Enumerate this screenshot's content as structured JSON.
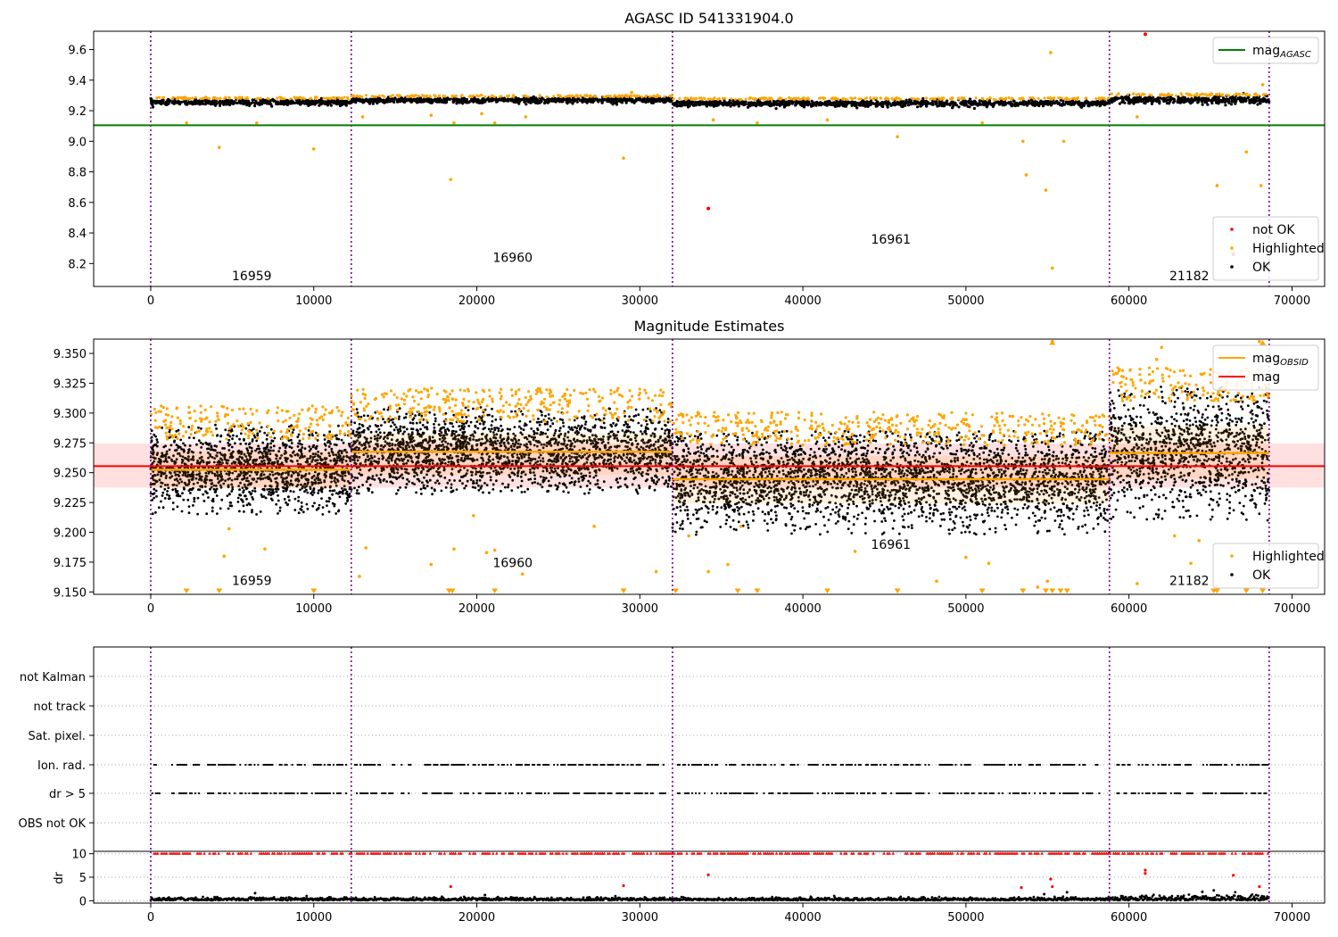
{
  "chart_data": [
    {
      "id": "top",
      "type": "scatter",
      "title": "AGASC ID 541331904.0",
      "xlabel": "",
      "ylabel": "",
      "xlim": [
        -3500,
        72000
      ],
      "ylim": [
        8.05,
        9.72
      ],
      "xticks": [
        0,
        10000,
        20000,
        30000,
        40000,
        50000,
        60000,
        70000
      ],
      "yticks": [
        8.2,
        8.4,
        8.6,
        8.8,
        9.0,
        9.2,
        9.4,
        9.6
      ],
      "ytick_labels": [
        "8.2",
        "8.4",
        "8.6",
        "8.8",
        "9.0",
        "9.2",
        "9.4",
        "9.6"
      ],
      "obs_boundaries": [
        0,
        12300,
        32000,
        58800,
        68600
      ],
      "obsids": [
        {
          "label": "16959",
          "x": 6200,
          "y": 8.09
        },
        {
          "label": "16960",
          "x": 22200,
          "y": 8.21
        },
        {
          "label": "16961",
          "x": 45400,
          "y": 8.33
        },
        {
          "label": "21182",
          "x": 63700,
          "y": 8.09
        }
      ],
      "mag_agasc": {
        "name": "mag_AGASC",
        "value": 9.105,
        "x_range": [
          -3500,
          72000
        ],
        "color": "#008000"
      },
      "ok_band": [
        {
          "x0": 0,
          "x1": 12300,
          "center": 9.255,
          "spread": 0.02
        },
        {
          "x0": 12300,
          "x1": 32000,
          "center": 9.268,
          "spread": 0.02
        },
        {
          "x0": 32000,
          "x1": 58800,
          "center": 9.248,
          "spread": 0.022
        },
        {
          "x0": 58800,
          "x1": 68600,
          "center": 9.27,
          "spread": 0.025
        }
      ],
      "highlighted_points": [
        [
          4200,
          8.96
        ],
        [
          10000,
          8.95
        ],
        [
          2200,
          9.12
        ],
        [
          6500,
          9.12
        ],
        [
          13000,
          9.16
        ],
        [
          17200,
          9.17
        ],
        [
          18400,
          8.75
        ],
        [
          18600,
          9.12
        ],
        [
          20300,
          9.18
        ],
        [
          21100,
          9.12
        ],
        [
          23000,
          9.16
        ],
        [
          29000,
          8.89
        ],
        [
          34500,
          9.14
        ],
        [
          37200,
          9.12
        ],
        [
          45800,
          9.03
        ],
        [
          51000,
          9.12
        ],
        [
          53500,
          9.0
        ],
        [
          53700,
          8.78
        ],
        [
          54900,
          8.68
        ],
        [
          55200,
          9.58
        ],
        [
          55300,
          8.17
        ],
        [
          56000,
          9.0
        ],
        [
          60500,
          9.16
        ],
        [
          65400,
          8.71
        ],
        [
          67200,
          8.93
        ],
        [
          68100,
          8.71
        ],
        [
          68200,
          9.37
        ],
        [
          41500,
          9.14
        ],
        [
          25000,
          9.3
        ],
        [
          29500,
          9.32
        ]
      ],
      "not_ok_points": [
        [
          34200,
          8.56
        ],
        [
          61000,
          9.7
        ],
        [
          66400,
          8.26
        ]
      ],
      "legends": [
        {
          "position": "upper-right",
          "entries": [
            {
              "label": "mag",
              "sub": "AGASC",
              "kind": "line",
              "color": "#008000"
            }
          ]
        },
        {
          "position": "lower-right",
          "entries": [
            {
              "label": "not OK",
              "kind": "dot",
              "color": "#ff0000"
            },
            {
              "label": "Highlighted",
              "kind": "dot",
              "color": "#ffa500"
            },
            {
              "label": "OK",
              "kind": "dot",
              "color": "#000000"
            }
          ]
        }
      ]
    },
    {
      "id": "middle",
      "type": "scatter",
      "title": "Magnitude Estimates",
      "xlabel": "",
      "ylabel": "",
      "xlim": [
        -3500,
        72000
      ],
      "ylim": [
        9.148,
        9.362
      ],
      "xticks": [
        0,
        10000,
        20000,
        30000,
        40000,
        50000,
        60000,
        70000
      ],
      "yticks": [
        9.15,
        9.175,
        9.2,
        9.225,
        9.25,
        9.275,
        9.3,
        9.325,
        9.35
      ],
      "ytick_labels": [
        "9.150",
        "9.175",
        "9.200",
        "9.225",
        "9.250",
        "9.275",
        "9.300",
        "9.325",
        "9.350"
      ],
      "obs_boundaries": [
        0,
        12300,
        32000,
        58800,
        68600
      ],
      "obsids": [
        {
          "label": "16959",
          "x": 6200,
          "y": 9.156
        },
        {
          "label": "16960",
          "x": 22200,
          "y": 9.171
        },
        {
          "label": "16961",
          "x": 45400,
          "y": 9.186
        },
        {
          "label": "21182",
          "x": 63700,
          "y": 9.156
        }
      ],
      "mag": {
        "name": "mag",
        "value": 9.2555,
        "band": [
          9.2375,
          9.2745
        ],
        "x_range": [
          -3500,
          72000
        ],
        "color": "#ff0000"
      },
      "mag_obsid": [
        {
          "x0": 0,
          "x1": 12300,
          "value": 9.2525,
          "band": [
            9.237,
            9.268
          ]
        },
        {
          "x0": 12300,
          "x1": 32000,
          "value": 9.2675,
          "band": [
            9.248,
            9.283
          ]
        },
        {
          "x0": 32000,
          "x1": 58800,
          "value": 9.2445,
          "band": [
            9.224,
            9.264
          ]
        },
        {
          "x0": 58800,
          "x1": 68600,
          "value": 9.2665,
          "band": [
            9.245,
            9.289
          ]
        }
      ],
      "ok_segments": [
        {
          "x0": 0,
          "x1": 12300,
          "lo": 9.215,
          "hi": 9.29
        },
        {
          "x0": 12300,
          "x1": 32000,
          "lo": 9.232,
          "hi": 9.305
        },
        {
          "x0": 32000,
          "x1": 58800,
          "lo": 9.198,
          "hi": 9.285
        },
        {
          "x0": 58800,
          "x1": 68600,
          "lo": 9.21,
          "hi": 9.322
        }
      ],
      "highlighted_points": [
        [
          4800,
          9.203
        ],
        [
          4500,
          9.18
        ],
        [
          7000,
          9.186
        ],
        [
          12800,
          9.163
        ],
        [
          13200,
          9.187
        ],
        [
          17200,
          9.173
        ],
        [
          18600,
          9.186
        ],
        [
          19800,
          9.214
        ],
        [
          20600,
          9.183
        ],
        [
          21100,
          9.185
        ],
        [
          22800,
          9.165
        ],
        [
          27200,
          9.205
        ],
        [
          31000,
          9.167
        ],
        [
          33000,
          9.197
        ],
        [
          34200,
          9.167
        ],
        [
          35400,
          9.173
        ],
        [
          36200,
          9.205
        ],
        [
          43200,
          9.184
        ],
        [
          48200,
          9.159
        ],
        [
          50000,
          9.179
        ],
        [
          51400,
          9.174
        ],
        [
          54400,
          9.154
        ],
        [
          55000,
          9.159
        ],
        [
          62800,
          9.197
        ],
        [
          63800,
          9.174
        ],
        [
          64300,
          9.193
        ],
        [
          60500,
          9.157
        ],
        [
          55300,
          9.36
        ],
        [
          62000,
          9.355
        ],
        [
          68000,
          9.36
        ],
        [
          61700,
          9.345
        ]
      ],
      "clipped_x": [
        2200,
        4200,
        10000,
        18300,
        18500,
        21100,
        29000,
        32200,
        36000,
        37200,
        41500,
        45800,
        51000,
        53500,
        54900,
        55300,
        55800,
        56200,
        65200,
        65400,
        67200,
        68200
      ],
      "legends": [
        {
          "position": "upper-right",
          "entries": [
            {
              "label": "mag",
              "sub": "OBSID",
              "kind": "line",
              "color": "#ffa500"
            },
            {
              "label": "mag",
              "kind": "line",
              "color": "#ff0000"
            }
          ]
        },
        {
          "position": "lower-right",
          "entries": [
            {
              "label": "Highlighted",
              "kind": "dot",
              "color": "#ffa500"
            },
            {
              "label": "OK",
              "kind": "dot",
              "color": "#000000"
            }
          ]
        }
      ]
    },
    {
      "id": "flags",
      "type": "scatter",
      "title": "",
      "xlim": [
        -3500,
        72000
      ],
      "obs_boundaries": [
        0,
        12300,
        32000,
        58800,
        68600
      ],
      "categories": [
        "not Kalman",
        "not track",
        "Sat. pixel.",
        "Ion. rad.",
        "dr > 5",
        "OBS not OK"
      ],
      "flagged_rows": [
        "Ion. rad.",
        "dr > 5"
      ],
      "flag_gaps": [
        [
          600,
          1300
        ],
        [
          3000,
          3500
        ],
        [
          12000,
          12500
        ],
        [
          16000,
          16700
        ],
        [
          31600,
          32300
        ],
        [
          47800,
          48300
        ],
        [
          58500,
          59200
        ],
        [
          64000,
          64500
        ]
      ]
    },
    {
      "id": "dr",
      "type": "scatter",
      "ylabel": "dr",
      "xlim": [
        -3500,
        72000
      ],
      "ylim": [
        -0.5,
        10.5
      ],
      "yticks": [
        0,
        5,
        10
      ],
      "ytick_labels": [
        "0",
        "5",
        "10"
      ],
      "xticks": [
        0,
        10000,
        20000,
        30000,
        40000,
        50000,
        60000,
        70000
      ],
      "obs_boundaries": [
        0,
        12300,
        32000,
        58800,
        68600
      ],
      "red_points": [
        [
          18400,
          3.0
        ],
        [
          29000,
          3.2
        ],
        [
          34200,
          5.5
        ],
        [
          53400,
          2.8
        ],
        [
          55200,
          4.6
        ],
        [
          55300,
          3.0
        ],
        [
          61000,
          6.5
        ],
        [
          61000,
          5.8
        ],
        [
          66400,
          5.4
        ],
        [
          68000,
          3.0
        ]
      ],
      "black_outliers": [
        [
          6400,
          1.6
        ],
        [
          20500,
          1.2
        ],
        [
          56200,
          1.8
        ],
        [
          64500,
          1.9
        ],
        [
          65200,
          2.2
        ],
        [
          54800,
          1.4
        ]
      ]
    }
  ]
}
